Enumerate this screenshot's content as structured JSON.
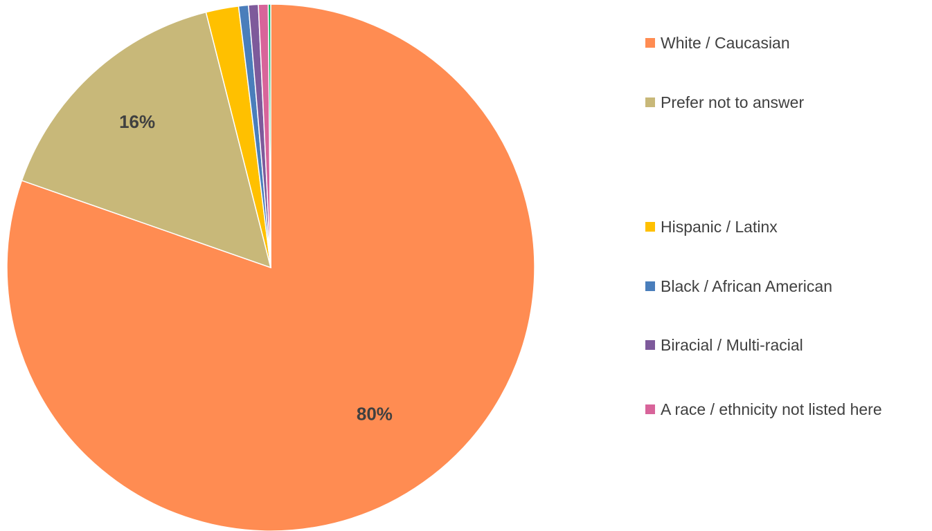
{
  "chart_data": {
    "type": "pie",
    "title": "",
    "start_angle_deg": 0,
    "direction": "clockwise",
    "categories": [
      "White / Caucasian",
      "Prefer not to answer",
      "Hispanic / Latinx",
      "Black / African American",
      "Biracial / Multi-racial",
      "A race / ethnicity not listed here"
    ],
    "slices": [
      {
        "category": "White / Caucasian",
        "value": 80.4,
        "color": "#FF8C52",
        "label": "80%"
      },
      {
        "category": "Prefer not to answer",
        "value": 15.7,
        "color": "#C8B879",
        "label": "16%"
      },
      {
        "category": "(not shown in legend)",
        "value": 0.0,
        "color": "#FFFFFF",
        "label": ""
      },
      {
        "category": "Hispanic / Latinx",
        "value": 2.0,
        "color": "#FFC000",
        "label": ""
      },
      {
        "category": "Black / African American",
        "value": 0.6,
        "color": "#4A7EBB",
        "label": ""
      },
      {
        "category": "Biracial / Multi-racial",
        "value": 0.6,
        "color": "#7E5A9B",
        "label": ""
      },
      {
        "category": "A race / ethnicity not listed here",
        "value": 0.6,
        "color": "#D8649A",
        "label": ""
      },
      {
        "category": "(not shown in legend)",
        "value": 0.15,
        "color": "#00B050",
        "label": ""
      }
    ],
    "legend": {
      "position": "right",
      "items": [
        {
          "label": "White / Caucasian",
          "color": "#FF8C52"
        },
        {
          "label": "Prefer not to answer",
          "color": "#C8B879"
        },
        {
          "label": "",
          "color": "#FFFFFF"
        },
        {
          "label": "Hispanic / Latinx",
          "color": "#FFC000"
        },
        {
          "label": "Black / African American",
          "color": "#4A7EBB"
        },
        {
          "label": "Biracial / Multi-racial",
          "color": "#7E5A9B"
        },
        {
          "label": "A race / ethnicity not listed here",
          "color": "#D8649A"
        }
      ]
    }
  }
}
